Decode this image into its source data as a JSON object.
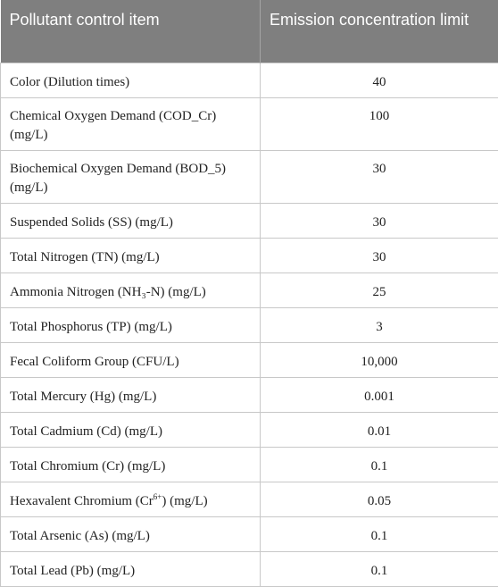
{
  "table": {
    "headers": {
      "item": "Pollutant control item",
      "limit": "Emission concentration limit"
    },
    "rows": [
      {
        "item": "Color (Dilution times)",
        "limit": "40"
      },
      {
        "item": "Chemical Oxygen Demand (COD_Cr) (mg/L)",
        "limit": "100"
      },
      {
        "item": "Biochemical Oxygen Demand (BOD_5) (mg/L)",
        "limit": "30"
      },
      {
        "item": "Suspended Solids (SS) (mg/L)",
        "limit": "30"
      },
      {
        "item": "Total Nitrogen (TN) (mg/L)",
        "limit": "30"
      },
      {
        "item": "Ammonia Nitrogen (NH₃-N) (mg/L)",
        "limit": "25"
      },
      {
        "item": "Total Phosphorus (TP) (mg/L)",
        "limit": "3"
      },
      {
        "item": "Fecal Coliform Group (CFU/L)",
        "limit": "10,000"
      },
      {
        "item": "Total Mercury (Hg) (mg/L)",
        "limit": "0.001"
      },
      {
        "item": "Total Cadmium (Cd) (mg/L)",
        "limit": "0.01"
      },
      {
        "item": "Total Chromium (Cr) (mg/L)",
        "limit": "0.1"
      },
      {
        "item_prefix": "Hexavalent Chromium (Cr",
        "item_sup": "6+",
        "item_suffix": ") (mg/L)",
        "limit": "0.05"
      },
      {
        "item": "Total Arsenic (As) (mg/L)",
        "limit": "0.1"
      },
      {
        "item": "Total Lead (Pb) (mg/L)",
        "limit": "0.1"
      }
    ]
  }
}
